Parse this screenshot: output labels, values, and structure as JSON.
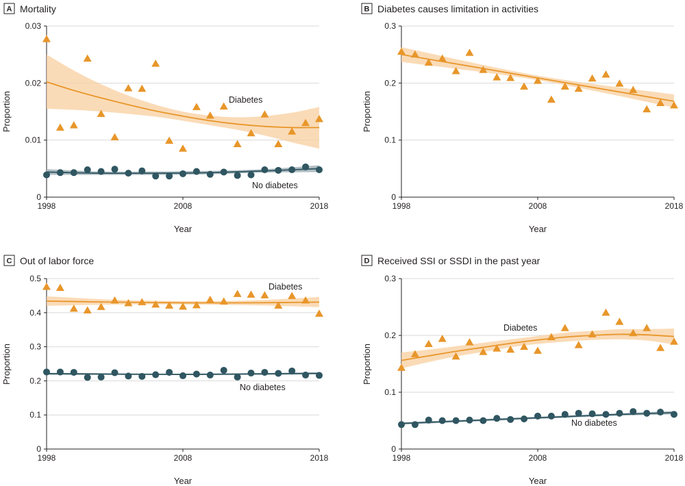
{
  "colors": {
    "diabetes": "#e8962a",
    "diabetes_band": "#f8cf9f",
    "no_diabetes": "#2f5661",
    "no_diabetes_band": "#a9b7bd",
    "axis": "#231f20",
    "grid": "#d9d9d9"
  },
  "chart_data": [
    {
      "panel": "A",
      "title": "Mortality",
      "type": "scatter",
      "xlabel": "Year",
      "ylabel": "Proportion",
      "xlim": [
        1998,
        2018
      ],
      "ylim": [
        0,
        0.03
      ],
      "xticks": [
        1998,
        2008,
        2018
      ],
      "xtick_labels": [
        "1998",
        "2008",
        "2018"
      ],
      "yticks": [
        0,
        0.01,
        0.02,
        0.03
      ],
      "ytick_labels": [
        "0",
        "0.01",
        "0.02",
        "0.03"
      ],
      "grid": "horizontal",
      "x": [
        1998,
        1999,
        2000,
        2001,
        2002,
        2003,
        2004,
        2005,
        2006,
        2007,
        2008,
        2009,
        2010,
        2011,
        2012,
        2013,
        2014,
        2015,
        2016,
        2017,
        2018
      ],
      "series": [
        {
          "name": "Diabetes",
          "marker": "triangle",
          "values": [
            0.0277,
            0.0122,
            0.0126,
            0.0243,
            0.0146,
            0.0105,
            0.0191,
            0.019,
            0.0234,
            0.0099,
            0.0085,
            0.0158,
            0.0143,
            0.0159,
            0.0093,
            0.0112,
            0.0145,
            0.0093,
            0.0115,
            0.013,
            0.0137
          ],
          "fit": {
            "x": [
              1998,
              2000,
              2002,
              2004,
              2006,
              2008,
              2010,
              2012,
              2014,
              2016,
              2018
            ],
            "y": [
              0.0202,
              0.0187,
              0.0174,
              0.0162,
              0.0151,
              0.0142,
              0.0134,
              0.0128,
              0.0124,
              0.0122,
              0.0122
            ]
          },
          "band": {
            "lower": [
              0.0155,
              0.0153,
              0.015,
              0.0146,
              0.0141,
              0.0134,
              0.0126,
              0.0118,
              0.0108,
              0.0096,
              0.0085
            ],
            "upper": [
              0.025,
              0.0222,
              0.0198,
              0.0178,
              0.0162,
              0.015,
              0.0143,
              0.014,
              0.0142,
              0.0148,
              0.0158
            ]
          },
          "label": "Diabetes"
        },
        {
          "name": "No diabetes",
          "marker": "circle",
          "values": [
            0.0039,
            0.0043,
            0.0043,
            0.0048,
            0.0045,
            0.0049,
            0.0042,
            0.0046,
            0.0037,
            0.0037,
            0.0041,
            0.0045,
            0.004,
            0.0044,
            0.0038,
            0.0039,
            0.0048,
            0.0047,
            0.0048,
            0.0053,
            0.0048
          ],
          "fit": {
            "x": [
              1998,
              2002,
              2006,
              2010,
              2014,
              2018
            ],
            "y": [
              0.0044,
              0.0042,
              0.0042,
              0.0043,
              0.0046,
              0.005
            ]
          },
          "band": {
            "lower": [
              0.0039,
              0.0039,
              0.0039,
              0.004,
              0.0043,
              0.0044
            ],
            "upper": [
              0.0049,
              0.0045,
              0.0045,
              0.0046,
              0.0049,
              0.0056
            ]
          },
          "label": "No diabetes"
        }
      ]
    },
    {
      "panel": "B",
      "title": "Diabetes causes limitation in activities",
      "type": "scatter",
      "xlabel": "Year",
      "ylabel": "Proportion",
      "xlim": [
        1998,
        2018
      ],
      "ylim": [
        0,
        0.3
      ],
      "xticks": [
        1998,
        2008,
        2018
      ],
      "xtick_labels": [
        "1998",
        "2008",
        "2018"
      ],
      "yticks": [
        0,
        0.1,
        0.2,
        0.3
      ],
      "ytick_labels": [
        "0",
        "0.1",
        "0.2",
        "0.3"
      ],
      "grid": "horizontal",
      "x": [
        1998,
        1999,
        2000,
        2001,
        2002,
        2003,
        2004,
        2005,
        2006,
        2007,
        2008,
        2009,
        2010,
        2011,
        2012,
        2013,
        2014,
        2015,
        2016,
        2017,
        2018
      ],
      "series": [
        {
          "name": "Diabetes",
          "marker": "triangle",
          "values": [
            0.255,
            0.25,
            0.236,
            0.243,
            0.221,
            0.253,
            0.223,
            0.21,
            0.209,
            0.194,
            0.204,
            0.171,
            0.194,
            0.19,
            0.208,
            0.215,
            0.199,
            0.188,
            0.154,
            0.165,
            0.161
          ],
          "fit": {
            "x": [
              1998,
              2008,
              2018
            ],
            "y": [
              0.25,
              0.209,
              0.168
            ]
          },
          "band": {
            "lower": [
              0.237,
              0.205,
              0.157
            ],
            "upper": [
              0.263,
              0.213,
              0.18
            ]
          }
        }
      ]
    },
    {
      "panel": "C",
      "title": "Out of labor force",
      "type": "scatter",
      "xlabel": "Year",
      "ylabel": "Proportion",
      "xlim": [
        1998,
        2018
      ],
      "ylim": [
        0,
        0.5
      ],
      "xticks": [
        1998,
        2008,
        2018
      ],
      "xtick_labels": [
        "1998",
        "2008",
        "2018"
      ],
      "yticks": [
        0,
        0.1,
        0.2,
        0.3,
        0.4,
        0.5
      ],
      "ytick_labels": [
        "0",
        "0.1",
        "0.2",
        "0.3",
        "0.4",
        "0.5"
      ],
      "grid": "horizontal",
      "x": [
        1998,
        1999,
        2000,
        2001,
        2002,
        2003,
        2004,
        2005,
        2006,
        2007,
        2008,
        2009,
        2010,
        2011,
        2012,
        2013,
        2014,
        2015,
        2016,
        2017,
        2018
      ],
      "series": [
        {
          "name": "Diabetes",
          "marker": "triangle",
          "values": [
            0.476,
            0.473,
            0.412,
            0.407,
            0.417,
            0.436,
            0.428,
            0.431,
            0.424,
            0.421,
            0.418,
            0.422,
            0.438,
            0.433,
            0.455,
            0.453,
            0.451,
            0.421,
            0.449,
            0.436,
            0.397
          ],
          "fit": {
            "x": [
              1998,
              2003,
              2008,
              2013,
              2018
            ],
            "y": [
              0.434,
              0.431,
              0.429,
              0.429,
              0.431
            ]
          },
          "band": {
            "lower": [
              0.42,
              0.424,
              0.424,
              0.422,
              0.416
            ],
            "upper": [
              0.448,
              0.438,
              0.434,
              0.436,
              0.446
            ]
          },
          "label": "Diabetes"
        },
        {
          "name": "No diabetes",
          "marker": "circle",
          "values": [
            0.226,
            0.226,
            0.225,
            0.21,
            0.211,
            0.224,
            0.214,
            0.213,
            0.218,
            0.225,
            0.215,
            0.22,
            0.217,
            0.231,
            0.211,
            0.223,
            0.225,
            0.222,
            0.229,
            0.217,
            0.216
          ],
          "fit": {
            "x": [
              1998,
              2008,
              2018
            ],
            "y": [
              0.221,
              0.219,
              0.222
            ]
          },
          "band": {
            "lower": [
              0.218,
              0.217,
              0.219
            ],
            "upper": [
              0.224,
              0.221,
              0.225
            ]
          },
          "label": "No diabetes"
        }
      ]
    },
    {
      "panel": "D",
      "title": "Received SSI or SSDI in the past year",
      "type": "scatter",
      "xlabel": "Year",
      "ylabel": "Proportion",
      "xlim": [
        1998,
        2018
      ],
      "ylim": [
        0,
        0.3
      ],
      "xticks": [
        1998,
        2008,
        2018
      ],
      "xtick_labels": [
        "1998",
        "2008",
        "2018"
      ],
      "yticks": [
        0,
        0.1,
        0.2,
        0.3
      ],
      "ytick_labels": [
        "0",
        "0.1",
        "0.2",
        "0.3"
      ],
      "grid": "horizontal",
      "x": [
        1998,
        1999,
        2000,
        2001,
        2002,
        2003,
        2004,
        2005,
        2006,
        2007,
        2008,
        2009,
        2010,
        2011,
        2012,
        2013,
        2014,
        2015,
        2016,
        2017,
        2018
      ],
      "series": [
        {
          "name": "Diabetes",
          "marker": "triangle",
          "values": [
            0.143,
            0.167,
            0.185,
            0.194,
            0.163,
            0.188,
            0.171,
            0.177,
            0.175,
            0.18,
            0.173,
            0.197,
            0.213,
            0.183,
            0.202,
            0.24,
            0.224,
            0.204,
            0.213,
            0.178,
            0.189
          ],
          "fit": {
            "x": [
              1998,
              2000,
              2002,
              2004,
              2006,
              2008,
              2010,
              2012,
              2014,
              2016,
              2018
            ],
            "y": [
              0.156,
              0.164,
              0.172,
              0.179,
              0.186,
              0.192,
              0.197,
              0.2,
              0.202,
              0.201,
              0.198
            ]
          },
          "band": {
            "lower": [
              0.142,
              0.153,
              0.163,
              0.171,
              0.179,
              0.185,
              0.189,
              0.192,
              0.193,
              0.191,
              0.184
            ],
            "upper": [
              0.17,
              0.175,
              0.181,
              0.187,
              0.193,
              0.199,
              0.205,
              0.208,
              0.211,
              0.211,
              0.212
            ]
          },
          "label": "Diabetes"
        },
        {
          "name": "No diabetes",
          "marker": "circle",
          "values": [
            0.043,
            0.043,
            0.051,
            0.05,
            0.05,
            0.051,
            0.05,
            0.054,
            0.052,
            0.053,
            0.058,
            0.058,
            0.061,
            0.063,
            0.062,
            0.061,
            0.063,
            0.066,
            0.063,
            0.065,
            0.061
          ],
          "fit": {
            "x": [
              1998,
              2003,
              2008,
              2013,
              2018
            ],
            "y": [
              0.045,
              0.05,
              0.055,
              0.06,
              0.064
            ]
          },
          "band": {
            "lower": [
              0.043,
              0.048,
              0.053,
              0.058,
              0.061
            ],
            "upper": [
              0.047,
              0.052,
              0.057,
              0.062,
              0.067
            ]
          },
          "label": "No diabetes"
        }
      ]
    }
  ]
}
